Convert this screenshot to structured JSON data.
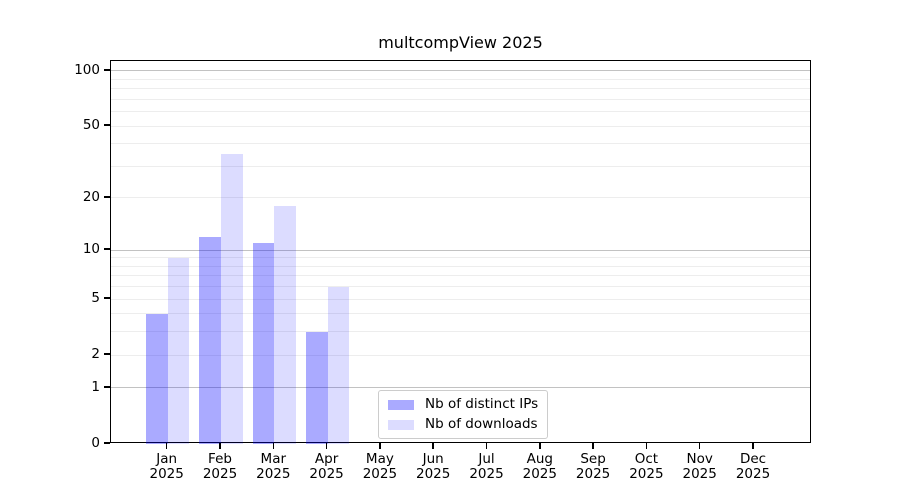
{
  "title": "multcompView 2025",
  "legend": {
    "items": [
      {
        "label": "Nb of distinct IPs"
      },
      {
        "label": "Nb of downloads"
      }
    ]
  },
  "chart_data": {
    "type": "bar",
    "title": "multcompView 2025",
    "categories": [
      "Jan",
      "Feb",
      "Mar",
      "Apr",
      "May",
      "Jun",
      "Jul",
      "Aug",
      "Sep",
      "Oct",
      "Nov",
      "Dec"
    ],
    "category_year": "2025",
    "series": [
      {
        "name": "Nb of distinct IPs",
        "color": "#A9A9FA",
        "fill": "#0000FF55",
        "values": [
          4,
          12,
          11,
          3,
          0,
          0,
          0,
          0,
          0,
          0,
          0,
          0
        ]
      },
      {
        "name": "Nb of downloads",
        "color": "#DCDCFB",
        "fill": "#0000FF23",
        "values": [
          9,
          35,
          18,
          6,
          0,
          0,
          0,
          0,
          0,
          0,
          0,
          0
        ]
      }
    ],
    "xlabel": "",
    "ylabel": "",
    "yscale": "log1p",
    "ylim": [
      0,
      113
    ],
    "yticks": [
      0,
      1,
      2,
      5,
      10,
      20,
      50,
      100
    ],
    "gridlines": {
      "major": [
        1,
        10,
        100
      ],
      "minor": [
        2,
        3,
        4,
        5,
        6,
        7,
        8,
        9,
        20,
        30,
        40,
        50,
        60,
        70,
        80,
        90
      ]
    },
    "grid": true,
    "legend_position": "bottom-center",
    "colors": {
      "grid_major": "#c2c2c2",
      "grid_minor": "#ededed",
      "axis": "#000000",
      "text": "#000000"
    }
  }
}
